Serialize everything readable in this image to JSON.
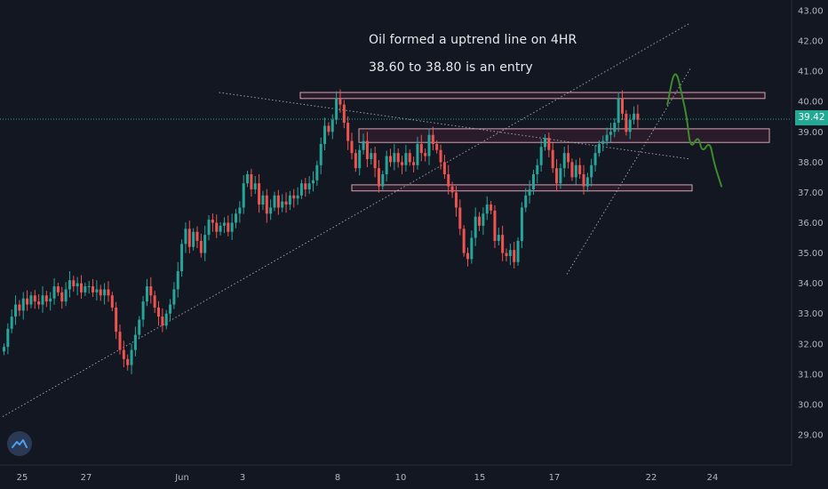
{
  "annotations": {
    "line1": "Oil formed a uptrend line on 4HR",
    "line2": "38.60 to 38.80 is an entry"
  },
  "colors": {
    "background": "#131722",
    "up": "#26a69a",
    "down": "#ef5350",
    "last_price": "#22ab94",
    "zone_fill": "rgba(236,64,122,0.10)",
    "zone_stroke": "#d7a3b3",
    "trendline": "#b2b5be",
    "projection": "#3d8b2a",
    "axis_text": "#b2b5be"
  },
  "logo": {
    "icon": "tradingview-logo-icon"
  },
  "chart_data": {
    "type": "candlestick",
    "title": "",
    "xlabel": "",
    "ylabel": "",
    "ylim": [
      28.0,
      43.3
    ],
    "y_ticks": [
      "43.00",
      "42.00",
      "41.00",
      "40.00",
      "39.00",
      "38.00",
      "37.00",
      "36.00",
      "35.00",
      "34.00",
      "33.00",
      "32.00",
      "31.00",
      "30.00",
      "29.00"
    ],
    "x_ticks": [
      "25",
      "27",
      "Jun",
      "3",
      "8",
      "10",
      "15",
      "17",
      "22",
      "24"
    ],
    "last_price": {
      "value": 39.42,
      "label": "39.42"
    },
    "grid": false,
    "ohlc_closes": [
      31.9,
      32.5,
      32.9,
      33.3,
      33.1,
      33.5,
      33.3,
      33.6,
      33.4,
      33.3,
      33.6,
      33.4,
      33.5,
      33.9,
      33.7,
      33.4,
      33.8,
      34.1,
      33.9,
      34.0,
      33.7,
      33.9,
      33.9,
      33.7,
      33.8,
      33.6,
      33.8,
      33.6,
      33.2,
      32.4,
      31.8,
      31.5,
      31.3,
      31.8,
      32.3,
      32.8,
      33.4,
      33.9,
      33.6,
      33.2,
      32.9,
      32.6,
      33.0,
      33.3,
      33.8,
      34.4,
      35.3,
      35.8,
      35.2,
      35.7,
      35.4,
      35.0,
      35.6,
      36.1,
      36.0,
      35.7,
      35.9,
      36.0,
      35.7,
      36.0,
      36.3,
      36.5,
      37.3,
      37.6,
      37.1,
      37.3,
      36.6,
      36.9,
      36.3,
      36.5,
      36.9,
      36.5,
      36.7,
      36.6,
      36.9,
      36.8,
      36.9,
      37.3,
      37.1,
      37.3,
      37.4,
      37.9,
      38.6,
      39.2,
      39.0,
      39.4,
      40.1,
      39.9,
      39.3,
      38.7,
      38.3,
      37.8,
      38.4,
      38.7,
      38.1,
      38.3,
      37.8,
      37.2,
      37.6,
      38.2,
      38.0,
      38.3,
      38.0,
      37.9,
      38.3,
      38.0,
      37.9,
      38.6,
      38.3,
      38.2,
      38.9,
      38.6,
      38.4,
      38.0,
      37.6,
      37.2,
      37.0,
      36.5,
      35.8,
      35.0,
      34.8,
      35.5,
      36.2,
      35.9,
      36.3,
      36.6,
      36.4,
      35.4,
      35.6,
      35.0,
      34.9,
      35.1,
      34.7,
      35.4,
      36.5,
      36.9,
      37.1,
      37.6,
      37.9,
      38.5,
      38.8,
      38.4,
      37.8,
      37.3,
      37.8,
      38.3,
      38.0,
      37.5,
      37.9,
      37.6,
      37.2,
      37.5,
      37.9,
      38.3,
      38.6,
      38.7,
      38.9,
      39.0,
      39.3,
      40.1,
      39.6,
      39.0,
      39.4,
      39.6,
      39.4
    ],
    "horizontal_zones": [
      {
        "low": 40.1,
        "high": 40.3
      },
      {
        "low": 38.65,
        "high": 39.1
      },
      {
        "low": 37.05,
        "high": 37.25
      }
    ],
    "trendlines": [
      {
        "from": [
          0,
          29.6
        ],
        "to": [
          178,
          42.6
        ]
      },
      {
        "from": [
          56,
          40.3
        ],
        "to": [
          178,
          38.1
        ]
      },
      {
        "from": [
          146,
          34.3
        ],
        "to": [
          178,
          41.1
        ]
      }
    ],
    "projection_path": [
      [
        172,
        39.9
      ],
      [
        174,
        41.2
      ],
      [
        176,
        40.1
      ],
      [
        177,
        39.5
      ],
      [
        178,
        38.4
      ],
      [
        180,
        38.9
      ],
      [
        181,
        38.3
      ],
      [
        183,
        38.7
      ],
      [
        184,
        38.0
      ],
      [
        186,
        37.2
      ]
    ]
  }
}
